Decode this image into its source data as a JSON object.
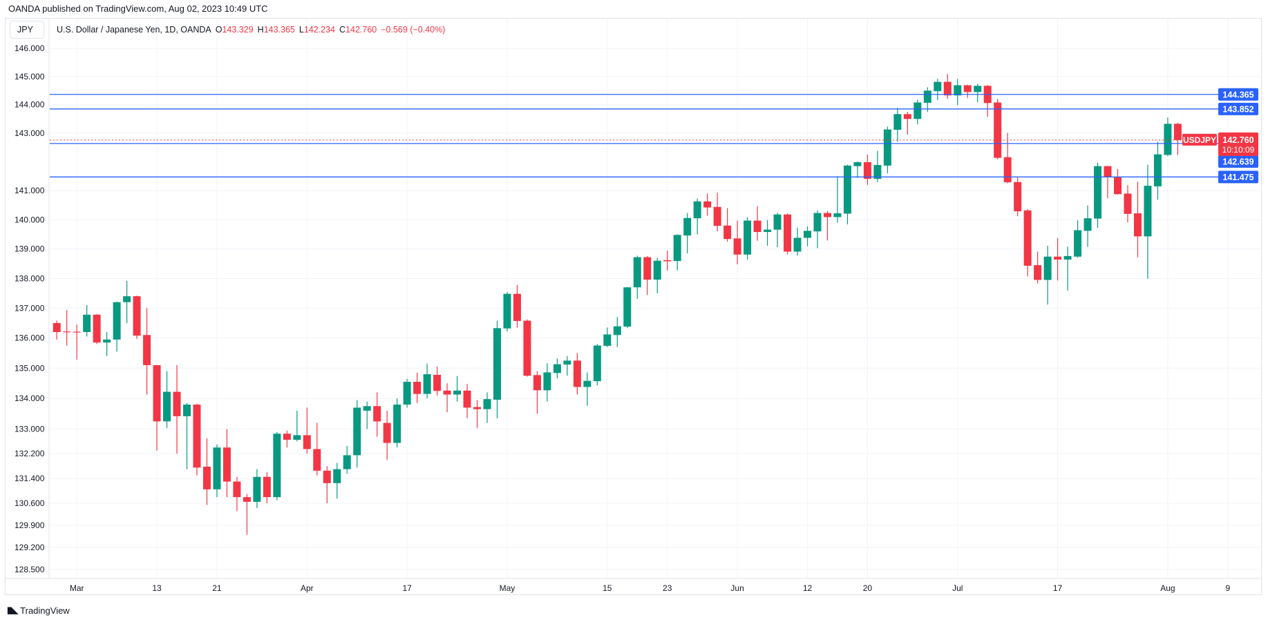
{
  "published": "OANDA published on TradingView.com, Aug 02, 2023 10:49 UTC",
  "legend": {
    "symbol": "JPY",
    "title": "U.S. Dollar / Japanese Yen, 1D, OANDA",
    "o_label": "O",
    "o": "143.329",
    "h_label": "H",
    "h": "143.365",
    "l_label": "L",
    "l": "142.234",
    "c_label": "C",
    "c": "142.760",
    "change": "−0.569 (−0.40%)"
  },
  "colors": {
    "up": "#089981",
    "down": "#f23645",
    "level": "#2962ff",
    "grid": "#f0f3fa"
  },
  "brand": {
    "label": "TradingView",
    "icon": "tradingview-logo-icon"
  },
  "chart_data": {
    "type": "candlestick",
    "symbol": "USDJPY",
    "interval": "1D",
    "y_scale": "log",
    "ylim": [
      128.5,
      146.0
    ],
    "y_ticks": [
      "146.000",
      "145.000",
      "144.000",
      "143.000",
      "141.000",
      "140.000",
      "139.000",
      "138.000",
      "137.000",
      "136.000",
      "135.000",
      "134.000",
      "133.000",
      "132.200",
      "131.400",
      "130.600",
      "129.900",
      "129.200",
      "128.500"
    ],
    "x_ticks": [
      {
        "label": "Mar",
        "bar": 2
      },
      {
        "label": "13",
        "bar": 10
      },
      {
        "label": "21",
        "bar": 16
      },
      {
        "label": "Apr",
        "bar": 25
      },
      {
        "label": "17",
        "bar": 35
      },
      {
        "label": "May",
        "bar": 45
      },
      {
        "label": "15",
        "bar": 55
      },
      {
        "label": "23",
        "bar": 61
      },
      {
        "label": "Jun",
        "bar": 68
      },
      {
        "label": "12",
        "bar": 75
      },
      {
        "label": "20",
        "bar": 81
      },
      {
        "label": "Jul",
        "bar": 90
      },
      {
        "label": "17",
        "bar": 100
      },
      {
        "label": "Aug",
        "bar": 111
      },
      {
        "label": "9",
        "bar": 117
      }
    ],
    "levels": [
      {
        "value": 144.365,
        "label": "144.365"
      },
      {
        "value": 143.852,
        "label": "143.852"
      },
      {
        "value": 142.639,
        "label": "142.639"
      },
      {
        "value": 141.475,
        "label": "141.475"
      }
    ],
    "last_price": {
      "value": 142.76,
      "label": "142.760",
      "countdown": "10:10:09",
      "symbol_tag": "USDJPY"
    },
    "ohlc": [
      [
        136.5,
        136.58,
        135.95,
        136.2
      ],
      [
        136.22,
        136.93,
        135.75,
        136.2
      ],
      [
        136.21,
        136.45,
        135.28,
        136.2
      ],
      [
        136.2,
        137.1,
        136.05,
        136.78
      ],
      [
        136.78,
        136.8,
        135.8,
        135.85
      ],
      [
        135.85,
        136.2,
        135.4,
        135.95
      ],
      [
        135.95,
        137.22,
        135.55,
        137.2
      ],
      [
        137.2,
        137.92,
        136.5,
        137.4
      ],
      [
        137.4,
        137.42,
        135.97,
        136.08
      ],
      [
        136.1,
        137.0,
        134.13,
        135.1
      ],
      [
        135.1,
        135.1,
        132.3,
        133.25
      ],
      [
        133.25,
        134.9,
        133.03,
        134.22
      ],
      [
        134.22,
        135.1,
        132.2,
        133.42
      ],
      [
        133.42,
        133.85,
        131.7,
        133.8
      ],
      [
        133.8,
        133.82,
        131.5,
        131.75
      ],
      [
        131.78,
        132.7,
        130.55,
        131.05
      ],
      [
        131.05,
        132.5,
        130.8,
        132.4
      ],
      [
        132.4,
        133.0,
        130.8,
        131.3
      ],
      [
        131.3,
        131.45,
        130.35,
        130.8
      ],
      [
        130.8,
        130.9,
        129.6,
        130.65
      ],
      [
        130.65,
        131.7,
        130.45,
        131.45
      ],
      [
        131.45,
        131.6,
        130.6,
        130.8
      ],
      [
        130.8,
        132.9,
        130.7,
        132.85
      ],
      [
        132.85,
        132.95,
        132.4,
        132.65
      ],
      [
        132.65,
        133.6,
        132.6,
        132.8
      ],
      [
        132.8,
        133.7,
        132.2,
        132.35
      ],
      [
        132.35,
        133.2,
        131.5,
        131.65
      ],
      [
        131.65,
        131.8,
        130.6,
        131.25
      ],
      [
        131.25,
        131.9,
        130.75,
        131.7
      ],
      [
        131.7,
        132.45,
        131.55,
        132.15
      ],
      [
        132.15,
        133.95,
        131.75,
        133.7
      ],
      [
        133.6,
        133.9,
        133.0,
        133.75
      ],
      [
        133.75,
        134.2,
        132.75,
        133.25
      ],
      [
        133.2,
        133.6,
        132.0,
        132.55
      ],
      [
        132.55,
        134.0,
        132.4,
        133.8
      ],
      [
        133.8,
        134.65,
        133.7,
        134.55
      ],
      [
        134.55,
        134.85,
        133.85,
        134.15
      ],
      [
        134.15,
        135.15,
        134.0,
        134.8
      ],
      [
        134.78,
        135.05,
        134.1,
        134.25
      ],
      [
        134.26,
        134.5,
        133.55,
        134.13
      ],
      [
        134.13,
        134.74,
        133.9,
        134.26
      ],
      [
        134.26,
        134.48,
        133.36,
        133.7
      ],
      [
        133.72,
        133.95,
        133.03,
        133.65
      ],
      [
        133.65,
        134.2,
        133.2,
        133.98
      ],
      [
        133.96,
        136.58,
        133.35,
        136.33
      ],
      [
        136.32,
        137.54,
        136.22,
        137.48
      ],
      [
        137.48,
        137.78,
        136.34,
        136.57
      ],
      [
        136.58,
        136.62,
        134.72,
        134.75
      ],
      [
        134.77,
        134.9,
        133.5,
        134.27
      ],
      [
        134.27,
        135.16,
        133.9,
        134.86
      ],
      [
        134.84,
        135.32,
        134.66,
        135.13
      ],
      [
        135.12,
        135.4,
        134.75,
        135.25
      ],
      [
        135.25,
        135.5,
        134.13,
        134.38
      ],
      [
        134.38,
        134.86,
        133.76,
        134.58
      ],
      [
        134.57,
        135.8,
        134.43,
        135.75
      ],
      [
        135.74,
        136.35,
        135.7,
        136.12
      ],
      [
        136.1,
        136.7,
        135.7,
        136.39
      ],
      [
        136.38,
        137.71,
        136.33,
        137.7
      ],
      [
        137.7,
        138.77,
        137.31,
        138.72
      ],
      [
        138.72,
        138.76,
        137.44,
        137.96
      ],
      [
        137.96,
        138.7,
        137.5,
        138.6
      ],
      [
        138.62,
        138.94,
        138.27,
        138.58
      ],
      [
        138.59,
        139.5,
        138.27,
        139.48
      ],
      [
        139.46,
        140.23,
        138.85,
        140.06
      ],
      [
        140.05,
        140.73,
        139.5,
        140.63
      ],
      [
        140.63,
        140.9,
        140.14,
        140.42
      ],
      [
        140.44,
        140.93,
        139.6,
        139.79
      ],
      [
        139.8,
        140.4,
        139.25,
        139.34
      ],
      [
        139.36,
        139.97,
        138.48,
        138.81
      ],
      [
        138.81,
        140.09,
        138.64,
        139.97
      ],
      [
        139.97,
        140.46,
        139.28,
        139.58
      ],
      [
        139.58,
        139.99,
        139.11,
        139.66
      ],
      [
        139.66,
        140.24,
        139.06,
        140.18
      ],
      [
        140.18,
        140.22,
        138.82,
        138.91
      ],
      [
        138.91,
        139.73,
        138.78,
        139.38
      ],
      [
        139.38,
        139.78,
        139.09,
        139.62
      ],
      [
        139.6,
        140.32,
        139.03,
        140.23
      ],
      [
        140.23,
        140.3,
        139.29,
        140.09
      ],
      [
        140.09,
        141.5,
        139.9,
        140.22
      ],
      [
        140.21,
        141.9,
        139.84,
        141.87
      ],
      [
        141.85,
        142.01,
        141.44,
        141.99
      ],
      [
        141.99,
        142.25,
        141.2,
        141.41
      ],
      [
        141.41,
        142.38,
        141.3,
        141.89
      ],
      [
        141.87,
        143.23,
        141.6,
        143.13
      ],
      [
        143.12,
        143.89,
        142.7,
        143.67
      ],
      [
        143.67,
        143.75,
        142.95,
        143.5
      ],
      [
        143.5,
        144.18,
        143.31,
        144.08
      ],
      [
        144.07,
        144.62,
        143.75,
        144.5
      ],
      [
        144.48,
        144.92,
        144.16,
        144.81
      ],
      [
        144.81,
        145.09,
        144.21,
        144.33
      ],
      [
        144.33,
        144.91,
        143.99,
        144.69
      ],
      [
        144.69,
        144.71,
        144.24,
        144.45
      ],
      [
        144.45,
        144.74,
        144.09,
        144.67
      ],
      [
        144.67,
        144.7,
        143.57,
        144.06
      ],
      [
        144.08,
        144.2,
        142.09,
        142.14
      ],
      [
        142.16,
        143.01,
        141.26,
        141.29
      ],
      [
        141.3,
        141.46,
        140.12,
        140.29
      ],
      [
        140.32,
        140.36,
        138.07,
        138.43
      ],
      [
        138.45,
        138.91,
        137.83,
        137.95
      ],
      [
        137.95,
        139.11,
        137.12,
        138.74
      ],
      [
        138.74,
        139.37,
        137.93,
        138.64
      ],
      [
        138.64,
        139.08,
        137.59,
        138.76
      ],
      [
        138.74,
        139.98,
        138.7,
        139.64
      ],
      [
        139.62,
        140.49,
        139.07,
        140.05
      ],
      [
        140.04,
        141.97,
        139.72,
        141.85
      ],
      [
        141.85,
        141.86,
        140.74,
        141.47
      ],
      [
        141.48,
        141.75,
        140.86,
        140.88
      ],
      [
        140.9,
        141.19,
        139.91,
        140.2
      ],
      [
        140.22,
        141.31,
        138.72,
        139.43
      ],
      [
        139.43,
        141.9,
        137.99,
        141.17
      ],
      [
        141.15,
        142.7,
        140.69,
        142.26
      ],
      [
        142.24,
        143.55,
        142.2,
        143.33
      ],
      [
        143.329,
        143.365,
        142.234,
        142.76
      ]
    ]
  }
}
